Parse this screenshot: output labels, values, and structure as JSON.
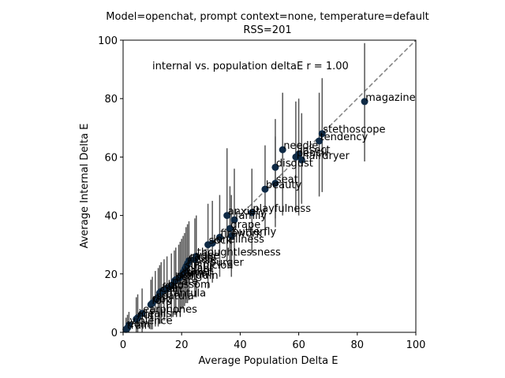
{
  "chart_data": {
    "type": "scatter",
    "title": "Model=openchat, prompt context=none, temperature=default",
    "subtitle": "RSS=201",
    "xlabel": "Average Population Delta E",
    "ylabel": "Average Internal Delta E",
    "xlim": [
      0,
      100
    ],
    "ylim": [
      0,
      100
    ],
    "xticks": [
      "0",
      "20",
      "40",
      "60",
      "80",
      "100"
    ],
    "yticks": [
      "0",
      "20",
      "40",
      "60",
      "80",
      "100"
    ],
    "annotation": "internal vs. population deltaE r = 1.00",
    "grid": false,
    "reference_line": "y = x (dashed gray)",
    "colors": {
      "points": "#0f2a45",
      "error_bars": "#555555",
      "reference": "#808080"
    },
    "points": [
      {
        "label": "magazine",
        "x": 82.5,
        "y": 79,
        "err": [
          58.5,
          99
        ]
      },
      {
        "label": "stethoscope",
        "x": 68,
        "y": 68,
        "err": [
          48,
          87
        ]
      },
      {
        "label": "tendency",
        "x": 67,
        "y": 65.5,
        "err": [
          46.5,
          82
        ]
      },
      {
        "label": "needle",
        "x": 54.5,
        "y": 62.5,
        "err": [
          40,
          82
        ]
      },
      {
        "label": "insect",
        "x": 60,
        "y": 61,
        "err": [
          40,
          80
        ]
      },
      {
        "label": "pencil",
        "x": 59,
        "y": 60,
        "err": [
          41,
          79
        ]
      },
      {
        "label": "hairdryer",
        "x": 61,
        "y": 59,
        "err": [
          44,
          75
        ]
      },
      {
        "label": "disgust",
        "x": 52,
        "y": 56.5,
        "err": [
          39,
          73
        ]
      },
      {
        "label": "seat",
        "x": 52,
        "y": 51,
        "err": [
          36,
          67
        ]
      },
      {
        "label": "beauty",
        "x": 48.5,
        "y": 49,
        "err": [
          33,
          64
        ]
      },
      {
        "label": "playfulness",
        "x": 44,
        "y": 41,
        "err": [
          27,
          56
        ]
      },
      {
        "label": "anxiety",
        "x": 35.5,
        "y": 40,
        "err": [
          24,
          63
        ]
      },
      {
        "label": "family",
        "x": 38,
        "y": 38.5,
        "err": [
          24,
          56
        ]
      },
      {
        "label": "grape",
        "x": 36.5,
        "y": 35.5,
        "err": [
          22,
          50
        ]
      },
      {
        "label": "butterfly",
        "x": 37,
        "y": 33,
        "err": [
          19,
          47
        ]
      },
      {
        "label": "firework",
        "x": 33,
        "y": 32.5,
        "err": [
          19,
          47
        ]
      },
      {
        "label": "loneliness",
        "x": 30.5,
        "y": 30.5,
        "err": [
          17,
          45
        ]
      },
      {
        "label": "sock",
        "x": 29,
        "y": 30,
        "err": [
          15,
          44
        ]
      },
      {
        "label": "thoughtlessness",
        "x": 25,
        "y": 26,
        "err": [
          12,
          40
        ]
      },
      {
        "label": "vase",
        "x": 24.5,
        "y": 25,
        "err": [
          12,
          39
        ]
      },
      {
        "label": "radio",
        "x": 22.5,
        "y": 24.5,
        "err": [
          11,
          38
        ]
      },
      {
        "label": "fiddle",
        "x": 22,
        "y": 23.5,
        "err": [
          10,
          37
        ]
      },
      {
        "label": "hamburger",
        "x": 21.5,
        "y": 22.5,
        "err": [
          10,
          36
        ]
      },
      {
        "label": "suspicion",
        "x": 21,
        "y": 21.5,
        "err": [
          9,
          34
        ]
      },
      {
        "label": "infant",
        "x": 20.5,
        "y": 20.5,
        "err": [
          8,
          33
        ]
      },
      {
        "label": "wallet",
        "x": 20,
        "y": 19.5,
        "err": [
          8,
          32
        ]
      },
      {
        "label": "carrot",
        "x": 19.5,
        "y": 19,
        "err": [
          7,
          31
        ]
      },
      {
        "label": "coffin",
        "x": 19,
        "y": 18.5,
        "err": [
          7,
          30
        ]
      },
      {
        "label": "penguin",
        "x": 18,
        "y": 18,
        "err": [
          6,
          29
        ]
      },
      {
        "label": "bell",
        "x": 17.5,
        "y": 17.5,
        "err": [
          6,
          28
        ]
      },
      {
        "label": "plate",
        "x": 16.5,
        "y": 16,
        "err": [
          5,
          27
        ]
      },
      {
        "label": "blossom",
        "x": 15,
        "y": 15,
        "err": [
          4,
          26
        ]
      },
      {
        "label": "cup",
        "x": 14,
        "y": 14.5,
        "err": [
          4,
          25
        ]
      },
      {
        "label": "fan",
        "x": 13,
        "y": 14,
        "err": [
          3,
          24
        ]
      },
      {
        "label": "coin",
        "x": 12.5,
        "y": 13.5,
        "err": [
          3,
          23
        ]
      },
      {
        "label": "tarantula",
        "x": 12,
        "y": 12,
        "err": [
          2,
          22
        ]
      },
      {
        "label": "spatula",
        "x": 11,
        "y": 11,
        "err": [
          2,
          21
        ]
      },
      {
        "label": "dog",
        "x": 10,
        "y": 10,
        "err": [
          1,
          19
        ]
      },
      {
        "label": "fork",
        "x": 9.5,
        "y": 9.5,
        "err": [
          1,
          18
        ]
      },
      {
        "label": "earphones",
        "x": 6.5,
        "y": 6.5,
        "err": [
          0,
          15
        ]
      },
      {
        "label": "idealism",
        "x": 5,
        "y": 5,
        "err": [
          0,
          13
        ]
      },
      {
        "label": "nut",
        "x": 4.5,
        "y": 4.5,
        "err": [
          0,
          12
        ]
      },
      {
        "label": "violence",
        "x": 2,
        "y": 2.5,
        "err": [
          0,
          7
        ]
      },
      {
        "label": "coin",
        "x": 1.5,
        "y": 1.5,
        "err": [
          0,
          6
        ]
      },
      {
        "label": "train",
        "x": 1,
        "y": 1,
        "err": [
          0,
          5
        ]
      }
    ]
  }
}
